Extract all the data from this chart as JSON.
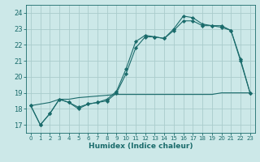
{
  "xlabel": "Humidex (Indice chaleur)",
  "xlim": [
    -0.5,
    23.5
  ],
  "ylim": [
    16.5,
    24.5
  ],
  "yticks": [
    17,
    18,
    19,
    20,
    21,
    22,
    23,
    24
  ],
  "xticks": [
    0,
    1,
    2,
    3,
    4,
    5,
    6,
    7,
    8,
    9,
    10,
    11,
    12,
    13,
    14,
    15,
    16,
    17,
    18,
    19,
    20,
    21,
    22,
    23
  ],
  "bg_color": "#cce8e8",
  "grid_color": "#aacccc",
  "line_color": "#1a6b6b",
  "line1_x": [
    0,
    1,
    2,
    3,
    4,
    5,
    6,
    7,
    8,
    9,
    10,
    11,
    12,
    13,
    14,
    15,
    16,
    17,
    18,
    19,
    20,
    21,
    22,
    23
  ],
  "line1_y": [
    18.2,
    17.0,
    17.7,
    18.6,
    18.4,
    18.0,
    18.3,
    18.4,
    18.6,
    19.1,
    20.5,
    22.2,
    22.6,
    22.5,
    22.4,
    23.0,
    23.8,
    23.7,
    23.3,
    23.2,
    23.2,
    22.9,
    21.0,
    19.0
  ],
  "line2_x": [
    0,
    1,
    2,
    3,
    4,
    5,
    6,
    7,
    8,
    9,
    10,
    11,
    12,
    13,
    14,
    15,
    16,
    17,
    18,
    19,
    20,
    21,
    22,
    23
  ],
  "line2_y": [
    18.2,
    17.0,
    17.7,
    18.6,
    18.4,
    18.1,
    18.3,
    18.4,
    18.5,
    19.0,
    20.2,
    21.8,
    22.5,
    22.5,
    22.4,
    22.9,
    23.5,
    23.5,
    23.2,
    23.2,
    23.1,
    22.9,
    21.1,
    19.0
  ],
  "line3_x": [
    0,
    1,
    2,
    3,
    4,
    5,
    6,
    7,
    8,
    9,
    10,
    11,
    12,
    13,
    14,
    15,
    16,
    17,
    18,
    19,
    20,
    21,
    22,
    23
  ],
  "line3_y": [
    18.2,
    18.3,
    18.4,
    18.6,
    18.6,
    18.7,
    18.75,
    18.8,
    18.85,
    18.9,
    18.9,
    18.9,
    18.9,
    18.9,
    18.9,
    18.9,
    18.9,
    18.9,
    18.9,
    18.9,
    19.0,
    19.0,
    19.0,
    19.0
  ]
}
